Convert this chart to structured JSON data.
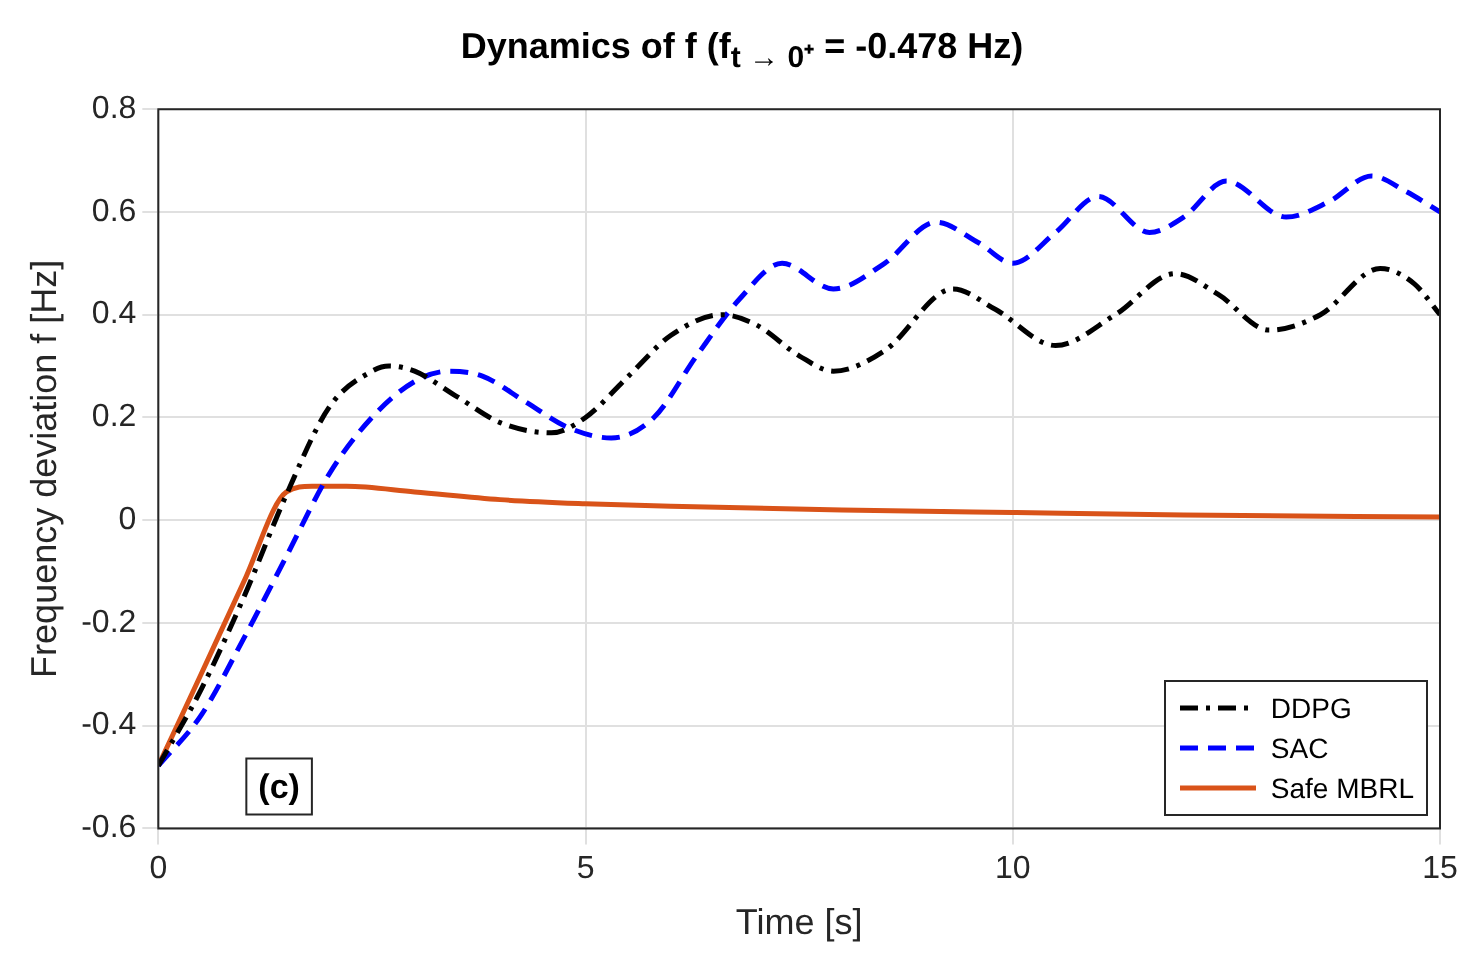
{
  "chart_data": {
    "type": "line",
    "title": "Dynamics of f (f$_{t → 0⁺}$ = -0.478 Hz)",
    "xlabel": "Time [s]",
    "ylabel": "Frequency deviation f [Hz]",
    "xlim": [
      0,
      15
    ],
    "xticks": [
      0,
      5,
      10,
      15
    ],
    "ylim": [
      -0.6,
      0.8
    ],
    "yticks": [
      -0.6,
      -0.4,
      -0.2,
      0,
      0.2,
      0.4,
      0.6,
      0.8
    ],
    "grid": true,
    "legend": "bottom right",
    "annotations": [
      "(c)"
    ],
    "series": [
      {
        "name": "DDPG",
        "color": "#000000",
        "line_style": "dashdot",
        "x": [
          0,
          0.5,
          1,
          1.5,
          2,
          2.5,
          2.7,
          3,
          3.5,
          4,
          4.6,
          5,
          5.5,
          6,
          6.6,
          7,
          7.5,
          7.9,
          8.5,
          9.3,
          9.8,
          10.5,
          11.2,
          11.9,
          12.4,
          13,
          13.6,
          14.3,
          14.7,
          15
        ],
        "values": [
          -0.478,
          -0.33,
          -0.15,
          0.05,
          0.22,
          0.29,
          0.3,
          0.29,
          0.24,
          0.19,
          0.17,
          0.2,
          0.28,
          0.36,
          0.4,
          0.38,
          0.32,
          0.29,
          0.33,
          0.45,
          0.41,
          0.34,
          0.4,
          0.48,
          0.44,
          0.37,
          0.4,
          0.49,
          0.46,
          0.4
        ]
      },
      {
        "name": "SAC",
        "color": "#0000ff",
        "line_style": "dashed",
        "x": [
          0,
          0.5,
          1,
          1.5,
          2,
          2.5,
          3,
          3.4,
          3.8,
          4.3,
          4.8,
          5.3,
          5.8,
          6.3,
          6.8,
          7.3,
          7.9,
          8.5,
          9.1,
          9.6,
          10,
          10.5,
          11,
          11.6,
          12,
          12.5,
          13.2,
          13.7,
          14.2,
          14.6,
          15
        ],
        "values": [
          -0.478,
          -0.38,
          -0.23,
          -0.07,
          0.09,
          0.2,
          0.27,
          0.29,
          0.28,
          0.23,
          0.18,
          0.16,
          0.2,
          0.32,
          0.43,
          0.5,
          0.45,
          0.5,
          0.58,
          0.54,
          0.5,
          0.56,
          0.63,
          0.56,
          0.59,
          0.66,
          0.59,
          0.62,
          0.67,
          0.64,
          0.6
        ]
      },
      {
        "name": "Safe MBRL",
        "color": "#d95319",
        "line_style": "solid",
        "x": [
          0,
          0.5,
          1,
          1.5,
          1.8,
          2.2,
          3,
          4,
          5,
          6,
          8,
          10,
          12,
          15
        ],
        "values": [
          -0.478,
          -0.3,
          -0.12,
          0.055,
          0.066,
          0.066,
          0.055,
          0.04,
          0.032,
          0.027,
          0.02,
          0.015,
          0.01,
          0.006
        ]
      }
    ]
  }
}
